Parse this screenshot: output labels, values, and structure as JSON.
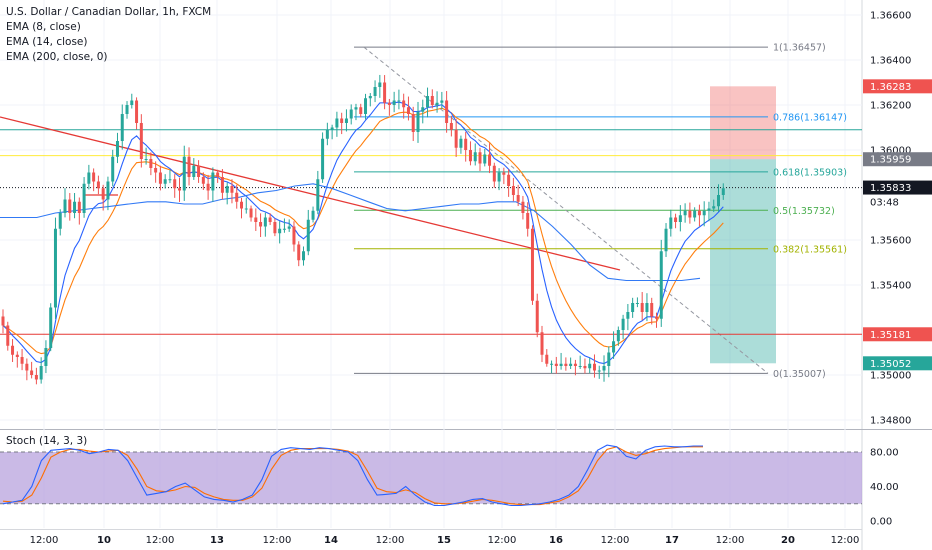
{
  "header": {
    "title": "U.S. Dollar / Canadian Dollar, 1h, FXCM",
    "indicators": [
      "EMA (8, close)",
      "EMA (14, close)",
      "EMA (200, close, 0)"
    ]
  },
  "stoch_label": "Stoch (14, 3, 3)",
  "colors": {
    "up": "#26a69a",
    "down": "#ef5350",
    "ema8": "#2962ff",
    "ema14": "#ff7f0e",
    "ema200": "#3179f5",
    "trendline": "#e53935",
    "stoch_k": "#2962ff",
    "stoch_d": "#ff6d00",
    "stoch_band": "#b39ddb"
  },
  "chart_data": {
    "type": "candlestick",
    "title": "U.S. Dollar / Canadian Dollar, 1h, FXCM",
    "ylim": [
      1.347,
      1.367
    ],
    "y_ticks": [
      "1.36600",
      "1.36400",
      "1.36200",
      "1.36000",
      "1.35600",
      "1.35400",
      "1.35000",
      "1.34800"
    ],
    "x_ticks": [
      "12:00",
      "10",
      "12:00",
      "13",
      "12:00",
      "14",
      "12:00",
      "15",
      "12:00",
      "16",
      "12:00",
      "17",
      "12:00",
      "20",
      "12:00"
    ],
    "price_labels": [
      {
        "text": "1.36283",
        "price": 1.36283,
        "color": "#ef5350"
      },
      {
        "text": "1.35959",
        "price": 1.35959,
        "color": "#787b86"
      },
      {
        "text": "1.35833",
        "price": 1.35833,
        "color": "#131722"
      },
      {
        "text": "03:48",
        "price": 1.3577,
        "color": "#131722"
      },
      {
        "text": "1.35181",
        "price": 1.35181,
        "color": "#ef5350"
      },
      {
        "text": "1.35052",
        "price": 1.35052,
        "color": "#26a69a"
      }
    ],
    "fib_levels": [
      {
        "label": "1(1.36457)",
        "price": 1.36457,
        "color": "#787b86"
      },
      {
        "label": "0.786(1.36147)",
        "price": 1.36147,
        "color": "#2196f3"
      },
      {
        "label": "0.618(1.35903)",
        "price": 1.35903,
        "color": "#26a69a"
      },
      {
        "label": "0.5(1.35732)",
        "price": 1.35732,
        "color": "#4caf50"
      },
      {
        "label": "0.382(1.35561)",
        "price": 1.35561,
        "color": "#a3b300"
      },
      {
        "label": "0(1.35007)",
        "price": 1.35007,
        "color": "#787b86"
      }
    ],
    "horizontal_lines": [
      {
        "price": 1.35181,
        "color": "#e53935"
      },
      {
        "price": 1.3609,
        "color": "#26a69a"
      },
      {
        "price": 1.35975,
        "color": "#ffeb3b"
      }
    ],
    "trade_box": {
      "entry": 1.35959,
      "stop": 1.36283,
      "target": 1.35052
    },
    "closes": [
      1.3522,
      1.3513,
      1.3509,
      1.3508,
      1.3505,
      1.3502,
      1.35,
      1.3498,
      1.3504,
      1.3512,
      1.353,
      1.3565,
      1.3572,
      1.3578,
      1.3572,
      1.3577,
      1.3572,
      1.3585,
      1.359,
      1.3586,
      1.3583,
      1.3578,
      1.3586,
      1.3597,
      1.3604,
      1.3616,
      1.362,
      1.3622,
      1.3612,
      1.3596,
      1.3596,
      1.3592,
      1.359,
      1.3585,
      1.3587,
      1.3587,
      1.3583,
      1.3582,
      1.3597,
      1.3588,
      1.3593,
      1.3588,
      1.3585,
      1.3582,
      1.359,
      1.3588,
      1.3581,
      1.3584,
      1.3581,
      1.3577,
      1.3574,
      1.3574,
      1.357,
      1.3568,
      1.3566,
      1.357,
      1.3568,
      1.3563,
      1.3565,
      1.3565,
      1.3566,
      1.3558,
      1.3551,
      1.3555,
      1.3569,
      1.3573,
      1.3587,
      1.3605,
      1.3609,
      1.361,
      1.3614,
      1.3612,
      1.3614,
      1.3618,
      1.3619,
      1.3616,
      1.3623,
      1.3624,
      1.3628,
      1.363,
      1.3621,
      1.362,
      1.3622,
      1.3622,
      1.3619,
      1.3616,
      1.3608,
      1.3617,
      1.3619,
      1.3624,
      1.362,
      1.3621,
      1.3622,
      1.3612,
      1.3609,
      1.3601,
      1.3605,
      1.36,
      1.3595,
      1.3599,
      1.3594,
      1.3598,
      1.3593,
      1.3586,
      1.359,
      1.3589,
      1.3584,
      1.358,
      1.3577,
      1.3572,
      1.3565,
      1.3533,
      1.3519,
      1.3509,
      1.3505,
      1.3505,
      1.3504,
      1.3505,
      1.3504,
      1.3505,
      1.3504,
      1.3504,
      1.3503,
      1.3505,
      1.3502,
      1.3502,
      1.3504,
      1.351,
      1.3515,
      1.352,
      1.3525,
      1.3528,
      1.3532,
      1.3532,
      1.3528,
      1.3532,
      1.3526,
      1.3525,
      1.3555,
      1.3565,
      1.357,
      1.3568,
      1.3571,
      1.3573,
      1.357,
      1.3573,
      1.3571,
      1.3573,
      1.3574,
      1.3575,
      1.358,
      1.3583
    ],
    "ema200": [
      1.357,
      1.357,
      1.357,
      1.3572,
      1.3573,
      1.3574,
      1.3575,
      1.3576,
      1.3577,
      1.3577,
      1.3576,
      1.3576,
      1.3578,
      1.3579,
      1.3581,
      1.3582,
      1.3584,
      1.3585,
      1.3583,
      1.358,
      1.3577,
      1.3574,
      1.3573,
      1.3574,
      1.3575,
      1.3576,
      1.3576,
      1.3577,
      1.3577,
      1.3573,
      1.3566,
      1.3558,
      1.3549,
      1.3543,
      1.3542,
      1.3542,
      1.3542,
      1.3542,
      1.3543
    ],
    "stoch_k": [
      20,
      22,
      24,
      40,
      70,
      82,
      83,
      84,
      82,
      78,
      80,
      83,
      82,
      70,
      50,
      30,
      32,
      34,
      40,
      44,
      36,
      28,
      25,
      24,
      22,
      25,
      30,
      48,
      75,
      83,
      85,
      84,
      83,
      85,
      84,
      82,
      80,
      70,
      48,
      30,
      31,
      32,
      40,
      30,
      22,
      18,
      18,
      20,
      22,
      25,
      26,
      22,
      20,
      18,
      18,
      19,
      20,
      22,
      25,
      30,
      40,
      60,
      82,
      88,
      86,
      75,
      72,
      82,
      86,
      87,
      86,
      86,
      87,
      87
    ],
    "stoch_d": [
      23,
      22,
      23,
      30,
      50,
      74,
      80,
      83,
      83,
      81,
      80,
      81,
      82,
      76,
      60,
      40,
      35,
      34,
      36,
      40,
      39,
      32,
      28,
      25,
      24,
      24,
      28,
      38,
      60,
      76,
      82,
      84,
      84,
      84,
      84,
      83,
      81,
      76,
      58,
      38,
      34,
      33,
      36,
      33,
      26,
      21,
      20,
      20,
      21,
      23,
      25,
      24,
      22,
      20,
      19,
      19,
      19,
      21,
      23,
      28,
      35,
      50,
      70,
      83,
      86,
      80,
      76,
      78,
      82,
      84,
      85,
      86,
      86,
      86
    ],
    "stoch_levels": [
      80,
      20
    ],
    "stoch_ticks": [
      "80.00",
      "40.00",
      "0.00"
    ]
  }
}
